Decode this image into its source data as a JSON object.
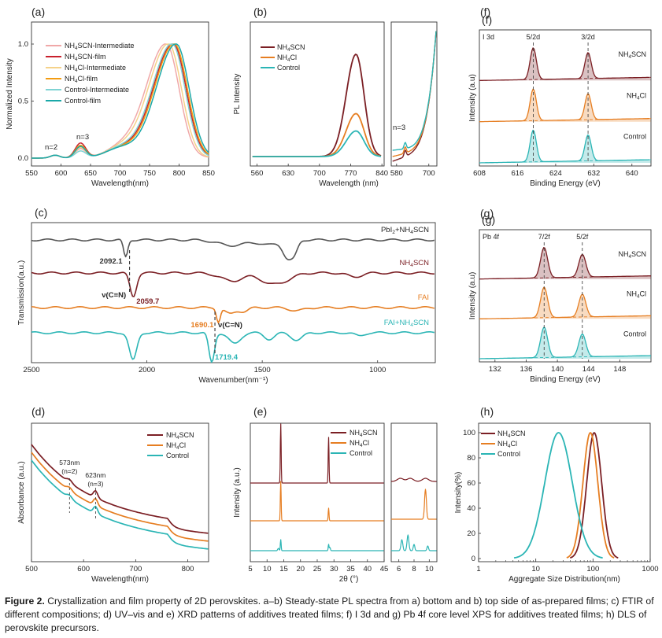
{
  "colors": {
    "nh4scn": "#7b1f24",
    "nh4cl": "#e67e22",
    "control": "#2bb5b5",
    "nh4scn_int": "#f0a8a8",
    "nh4scn_film": "#c8202c",
    "nh4cl_int": "#f5d28a",
    "nh4cl_film": "#f39c12",
    "control_int": "#7fd3d3",
    "control_film": "#1aa8a8"
  },
  "caption": {
    "label": "Figure 2.",
    "text": "Crystallization and film property of 2D perovskites. a–b) Steady-state PL spectra from a) bottom and b) top side of as-prepared films; c) FTIR of different compositions; d) UV–vis and e) XRD patterns of additives treated films; f) I 3d and g) Pb 4f core level XPS for additives treated films; h) DLS of perovskite precursors."
  },
  "chart_data": [
    {
      "panel": "(a)",
      "type": "line",
      "xlabel": "Wavelength(nm)",
      "ylabel": "Normalized Intensity",
      "xlim": [
        550,
        850
      ],
      "ylim": [
        0,
        1
      ],
      "xticks": [
        550,
        600,
        650,
        700,
        750,
        800,
        850
      ],
      "yticks": [
        "0.0",
        "0.5",
        "1.0"
      ],
      "annotations": [
        "n=2",
        "n=3"
      ],
      "series": [
        {
          "name": "NH4SCN-Intermediate",
          "peak": 778,
          "n3": 0.08
        },
        {
          "name": "NH4SCN-film",
          "peak": 790,
          "n3": 0.13
        },
        {
          "name": "NH4Cl-Intermediate",
          "peak": 782,
          "n3": 0.09
        },
        {
          "name": "NH4Cl-film",
          "peak": 792,
          "n3": 0.11
        },
        {
          "name": "Control-Intermediate",
          "peak": 788,
          "n3": 0.06
        },
        {
          "name": "Control-film",
          "peak": 795,
          "n3": 0.1
        }
      ]
    },
    {
      "panel": "(b)",
      "type": "line",
      "xlabel": "Wavelength (nm)",
      "ylabel": "PL Intensity",
      "xlim": [
        540,
        845
      ],
      "xticks": [
        560,
        630,
        700,
        770,
        840
      ],
      "inset_xticks": [
        580,
        700
      ],
      "annotations": [
        "n=3"
      ],
      "series": [
        {
          "name": "NH4SCN",
          "peak_x": 782,
          "peak_rel": 1.0
        },
        {
          "name": "NH4Cl",
          "peak_x": 782,
          "peak_rel": 0.42
        },
        {
          "name": "Control",
          "peak_x": 782,
          "peak_rel": 0.25
        }
      ]
    },
    {
      "panel": "(c)",
      "type": "line",
      "xlabel": "Wavenumber(nm⁻¹)",
      "ylabel": "Transmission(a.u.)",
      "xlim": [
        2500,
        750
      ],
      "xticks": [
        2500,
        2000,
        1500,
        1000
      ],
      "annotations": [
        "2092.1",
        "2059.7",
        "1690.1",
        "1719.4",
        "ν(C≡N)",
        "ν(C=N)"
      ],
      "series": [
        {
          "name": "PbI2+NH4SCN"
        },
        {
          "name": "NH4SCN"
        },
        {
          "name": "FAI"
        },
        {
          "name": "FAI+NH4SCN"
        }
      ]
    },
    {
      "panel": "(d)",
      "type": "line",
      "xlabel": "Wavelength(nm)",
      "ylabel": "Absorbance (a.u.)",
      "xlim": [
        500,
        840
      ],
      "xticks": [
        500,
        600,
        700,
        800
      ],
      "annotations": [
        "573nm",
        "(n=2)",
        "623nm",
        "(n=3)"
      ],
      "series": [
        {
          "name": "NH4SCN"
        },
        {
          "name": "NH4Cl"
        },
        {
          "name": "Control"
        }
      ]
    },
    {
      "panel": "(e)",
      "type": "line",
      "xlabel": "2θ (°)",
      "ylabel": "Intensity (a.u.)",
      "xticks": [
        5,
        10,
        15,
        20,
        25,
        30,
        35,
        40,
        45
      ],
      "inset_xticks": [
        6,
        8,
        10
      ],
      "series": [
        {
          "name": "NH4SCN",
          "peaks": [
            14.1,
            28.4
          ]
        },
        {
          "name": "NH4Cl",
          "peaks": [
            14.1,
            28.4
          ]
        },
        {
          "name": "Control",
          "peaks": [
            14.1,
            28.4
          ]
        }
      ]
    },
    {
      "panel": "(f)",
      "type": "line",
      "xlabel": "Binding Energy (eV)",
      "ylabel": "Intensity (a.u)",
      "xlim": [
        608,
        644
      ],
      "xticks": [
        608,
        616,
        624,
        632,
        640
      ],
      "annotations": [
        "I 3d",
        "5/2d",
        "3/2d"
      ],
      "peaks": [
        619.3,
        630.8
      ],
      "series": [
        {
          "name": "NH4SCN"
        },
        {
          "name": "NH4Cl"
        },
        {
          "name": "Control"
        }
      ]
    },
    {
      "panel": "(g)",
      "type": "line",
      "xlabel": "Binding Energy (eV)",
      "ylabel": "Intensity (a.u)",
      "xlim": [
        130,
        152
      ],
      "xticks": [
        132,
        136,
        140,
        144,
        148
      ],
      "annotations": [
        "Pb 4f",
        "7/2f",
        "5/2f"
      ],
      "peaks": [
        138.3,
        143.2
      ],
      "series": [
        {
          "name": "NH4SCN"
        },
        {
          "name": "NH4Cl"
        },
        {
          "name": "Control"
        }
      ]
    },
    {
      "panel": "(h)",
      "type": "line",
      "xlabel": "Aggregate Size Distribution(nm)",
      "ylabel": "Intensity(%)",
      "xscale": "log",
      "xlim": [
        1,
        1000
      ],
      "ylim": [
        0,
        100
      ],
      "xticks": [
        "1",
        "10",
        "100",
        "1000"
      ],
      "yticks": [
        "0",
        "20",
        "40",
        "60",
        "80",
        "100"
      ],
      "series": [
        {
          "name": "NH4SCN",
          "center": 105,
          "width": 0.13
        },
        {
          "name": "NH4Cl",
          "center": 90,
          "width": 0.13
        },
        {
          "name": "Control",
          "center": 25,
          "width": 0.24
        }
      ]
    }
  ]
}
